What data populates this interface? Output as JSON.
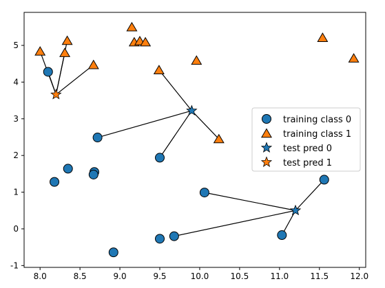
{
  "chart_data": {
    "type": "scatter",
    "xlim": [
      7.8,
      12.08
    ],
    "ylim": [
      -1.05,
      5.9
    ],
    "x_ticks": [
      "8.0",
      "8.5",
      "9.0",
      "9.5",
      "10.0",
      "10.5",
      "11.0",
      "11.5",
      "12.0"
    ],
    "y_ticks": [
      "-1",
      "0",
      "1",
      "2",
      "3",
      "4",
      "5"
    ],
    "grid": false,
    "legend_position": "center-right",
    "colors": {
      "class0": "#1f77b4",
      "class1": "#ff7f0e",
      "line": "#000000"
    },
    "series": [
      {
        "name": "training class 0",
        "marker": "circle",
        "color": "#1f77b4",
        "points": [
          [
            8.1,
            4.28
          ],
          [
            8.72,
            2.49
          ],
          [
            8.35,
            1.64
          ],
          [
            8.68,
            1.55
          ],
          [
            8.67,
            1.48
          ],
          [
            8.18,
            1.28
          ],
          [
            9.5,
            1.94
          ],
          [
            10.06,
            0.99
          ],
          [
            11.56,
            1.34
          ],
          [
            11.03,
            -0.17
          ],
          [
            9.68,
            -0.2
          ],
          [
            9.5,
            -0.27
          ],
          [
            8.92,
            -0.64
          ]
        ]
      },
      {
        "name": "training class 1",
        "marker": "triangle",
        "color": "#ff7f0e",
        "points": [
          [
            8.0,
            4.84
          ],
          [
            8.31,
            4.8
          ],
          [
            8.34,
            5.13
          ],
          [
            8.67,
            4.47
          ],
          [
            9.15,
            5.5
          ],
          [
            9.18,
            5.09
          ],
          [
            9.25,
            5.12
          ],
          [
            9.32,
            5.09
          ],
          [
            9.49,
            4.33
          ],
          [
            9.96,
            4.59
          ],
          [
            10.24,
            2.45
          ],
          [
            11.54,
            5.21
          ],
          [
            11.93,
            4.65
          ]
        ]
      },
      {
        "name": "test pred 0",
        "marker": "star",
        "color": "#1f77b4",
        "points": [
          [
            9.9,
            3.22
          ],
          [
            11.2,
            0.5
          ]
        ]
      },
      {
        "name": "test pred 1",
        "marker": "star",
        "color": "#ff7f0e",
        "points": [
          [
            8.2,
            3.66
          ]
        ]
      }
    ],
    "neighbor_lines": [
      {
        "from": [
          8.2,
          3.66
        ],
        "to": [
          8.1,
          4.28
        ]
      },
      {
        "from": [
          8.2,
          3.66
        ],
        "to": [
          8.0,
          4.84
        ]
      },
      {
        "from": [
          8.2,
          3.66
        ],
        "to": [
          8.31,
          4.8
        ]
      },
      {
        "from": [
          8.2,
          3.66
        ],
        "to": [
          8.34,
          5.13
        ]
      },
      {
        "from": [
          8.2,
          3.66
        ],
        "to": [
          8.67,
          4.47
        ]
      },
      {
        "from": [
          9.9,
          3.22
        ],
        "to": [
          8.72,
          2.49
        ]
      },
      {
        "from": [
          9.9,
          3.22
        ],
        "to": [
          9.5,
          1.94
        ]
      },
      {
        "from": [
          9.9,
          3.22
        ],
        "to": [
          9.49,
          4.33
        ]
      },
      {
        "from": [
          9.9,
          3.22
        ],
        "to": [
          10.24,
          2.45
        ]
      },
      {
        "from": [
          11.2,
          0.5
        ],
        "to": [
          10.06,
          0.99
        ]
      },
      {
        "from": [
          11.2,
          0.5
        ],
        "to": [
          9.68,
          -0.2
        ]
      },
      {
        "from": [
          11.2,
          0.5
        ],
        "to": [
          11.03,
          -0.17
        ]
      },
      {
        "from": [
          11.2,
          0.5
        ],
        "to": [
          11.56,
          1.34
        ]
      }
    ],
    "legend": [
      "training class 0",
      "training class 1",
      "test pred 0",
      "test pred 1"
    ]
  }
}
